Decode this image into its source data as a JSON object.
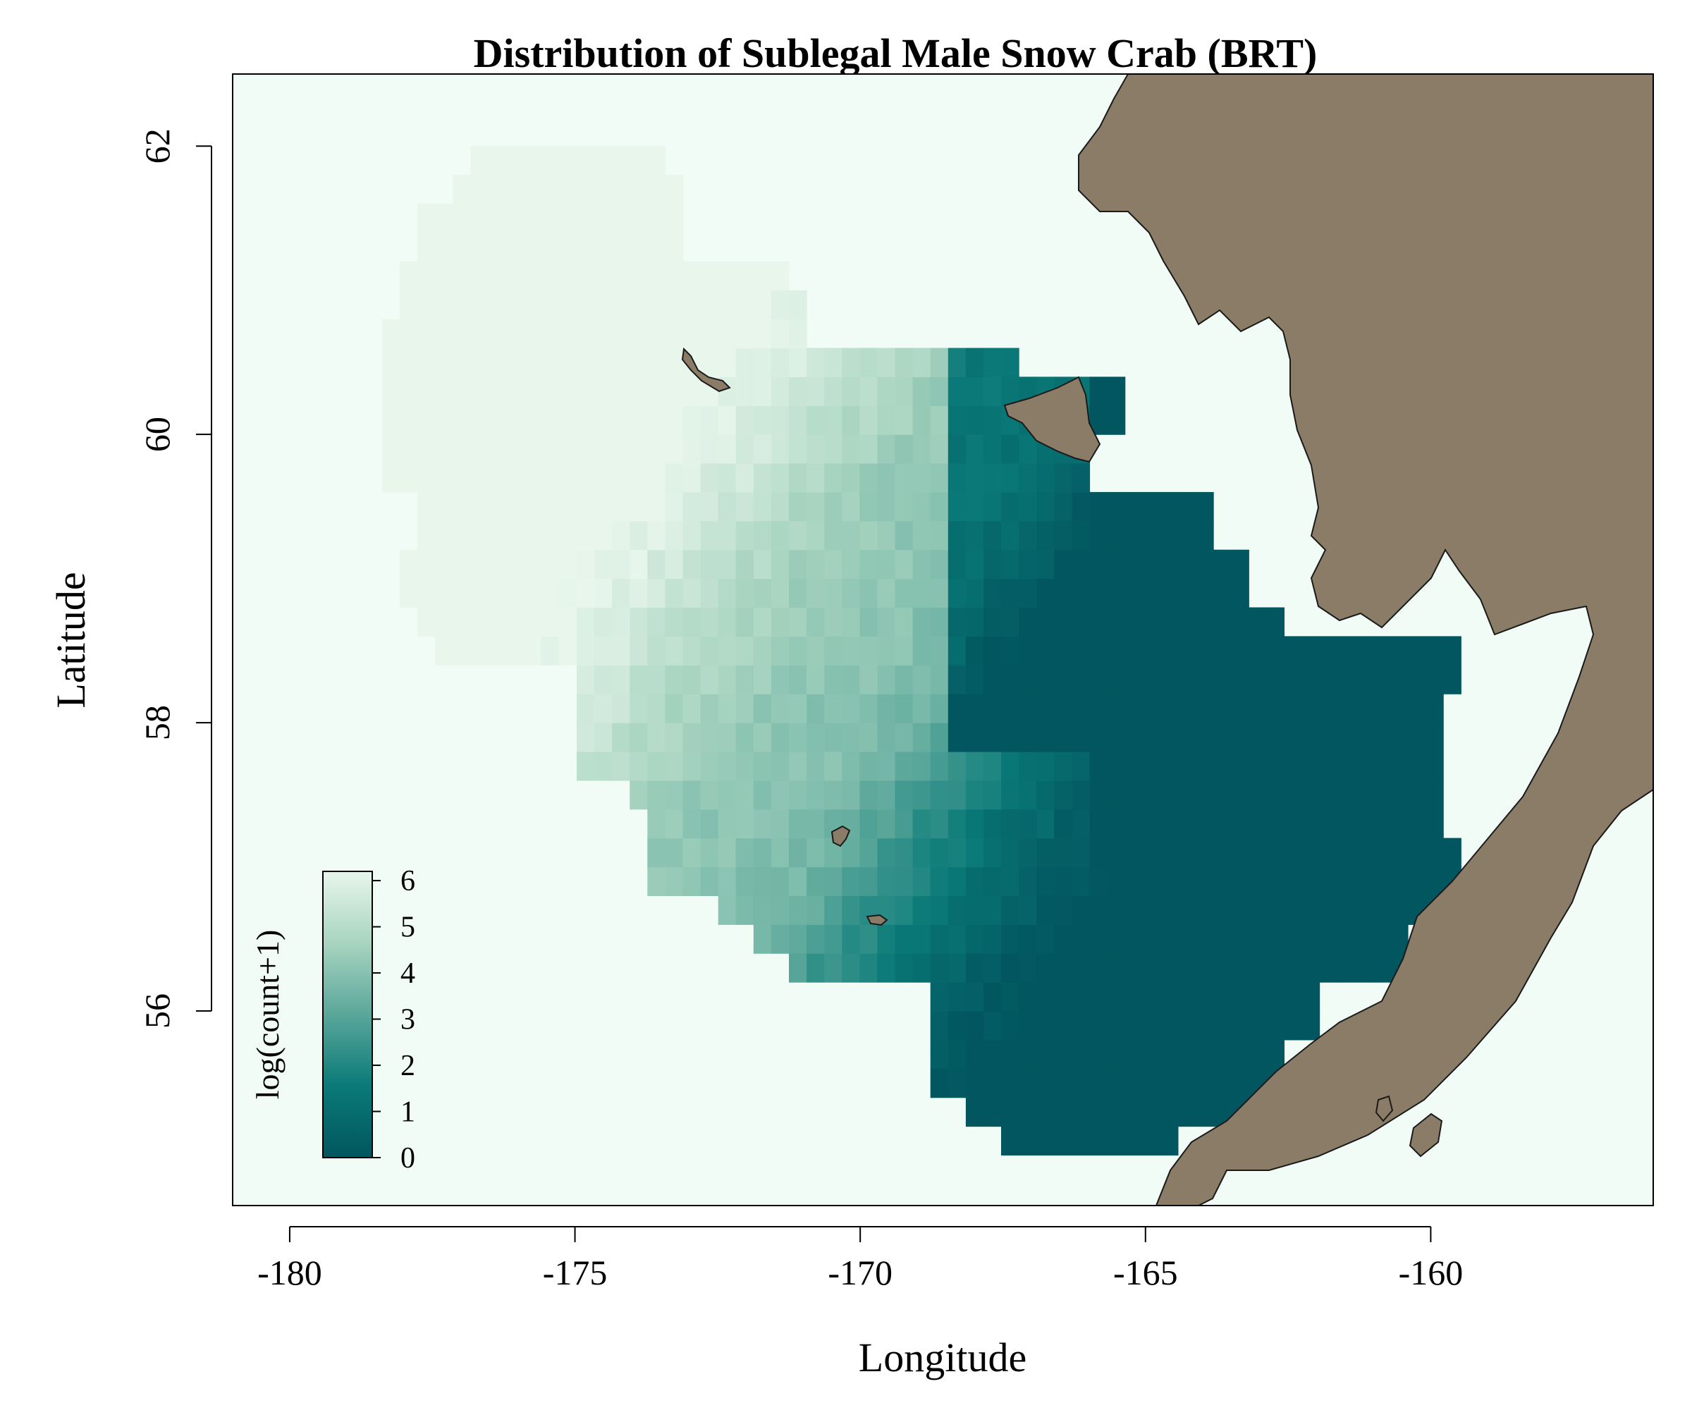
{
  "chart_data": {
    "type": "heatmap",
    "title": "Distribution of Sublegal Male Snow Crab (BRT)",
    "xlabel": "Longitude",
    "ylabel": "Latitude",
    "xlim": [
      -181,
      -156.1
    ],
    "ylim": [
      54.65,
      62.5
    ],
    "x_ticks": [
      -180,
      -175,
      -170,
      -165,
      -160
    ],
    "y_ticks": [
      56,
      58,
      60,
      62
    ],
    "x_tick_labels": [
      "-180",
      "-175",
      "-170",
      "-165",
      "-160"
    ],
    "y_tick_labels": [
      "56",
      "58",
      "60",
      "62"
    ],
    "legend": {
      "title": "log(count+1)",
      "placement": "bottom-left",
      "min": 0,
      "max": 6.2,
      "ticks": [
        0,
        1,
        2,
        3,
        4,
        5,
        6
      ],
      "tick_labels": [
        "0",
        "1",
        "2",
        "3",
        "4",
        "5",
        "6"
      ]
    },
    "colors": {
      "low": "#02565f",
      "mid_low": "#0a7a78",
      "mid": "#5aa79a",
      "mid_high": "#a8d4c0",
      "high": "#e8f6ec",
      "water": "#f2fcf6",
      "land": "#8a7c66"
    },
    "cell_size_deg": {
      "lon": 0.31,
      "lat": 0.2
    }
  }
}
